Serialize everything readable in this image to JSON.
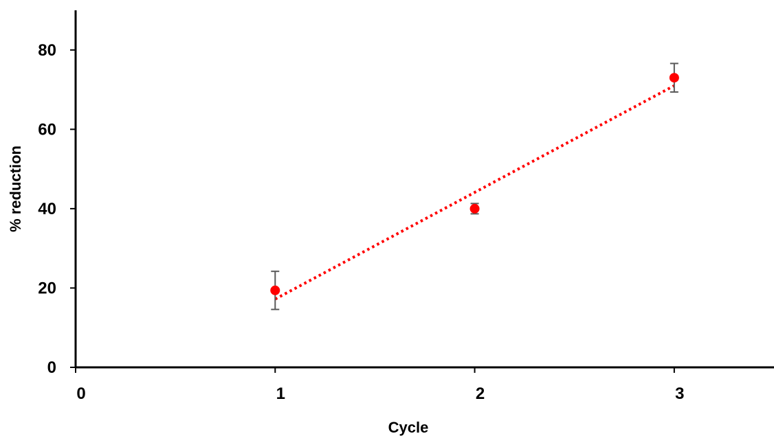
{
  "chart_data": {
    "type": "scatter",
    "title": "",
    "xlabel": "Cycle",
    "ylabel": "% reduction",
    "xlim": [
      0,
      3.5
    ],
    "ylim": [
      0,
      90
    ],
    "xticks": [
      0,
      1,
      2,
      3
    ],
    "yticks": [
      0,
      20,
      40,
      60,
      80
    ],
    "grid": false,
    "legend": "none",
    "series": [
      {
        "x": [
          1,
          2,
          3
        ],
        "y": [
          19.4,
          40.0,
          73.0
        ],
        "error": [
          4.8,
          1.3,
          3.6
        ],
        "color": "#ff0000",
        "error_color": "#595959"
      }
    ],
    "trendline": {
      "type": "linear",
      "x": [
        1,
        3
      ],
      "y": [
        17.2,
        71.0
      ],
      "style": "dotted",
      "color": "#ff0000"
    }
  }
}
